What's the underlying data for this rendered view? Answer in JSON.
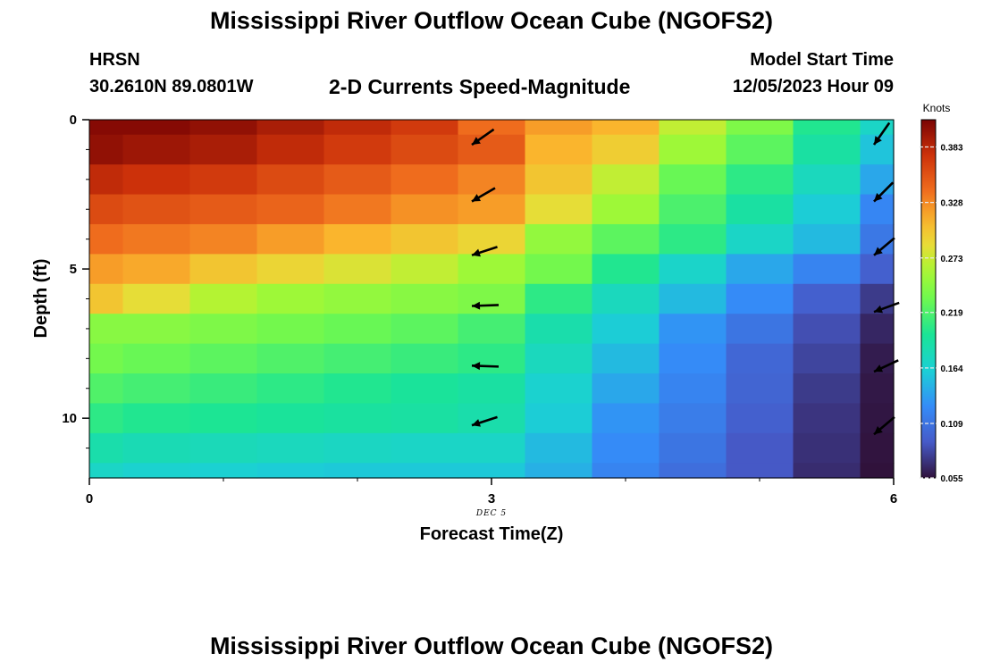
{
  "header": {
    "title": "Mississippi River Outflow Ocean Cube (NGOFS2)",
    "station": "HRSN",
    "coordinates": "30.2610N  89.0801W",
    "subtitle": "2-D Currents Speed-Magnitude",
    "model_start_label": "Model Start Time",
    "model_start_value": "12/05/2023 Hour 09"
  },
  "footer": {
    "title": "Mississippi River Outflow Ocean Cube (NGOFS2)"
  },
  "chart_data": {
    "type": "heatmap",
    "title": "2-D Currents Speed-Magnitude",
    "xlabel": "Forecast Time(Z)",
    "ylabel": "Depth (ft)",
    "x_ticks": [
      "0",
      "3",
      "6"
    ],
    "y_ticks": [
      "0",
      "5",
      "10"
    ],
    "date_annotation": "DEC 5",
    "xlim": [
      0,
      6
    ],
    "ylim": [
      0,
      12
    ],
    "x_boundaries": [
      0,
      0.25,
      0.75,
      1.25,
      1.75,
      2.25,
      2.75,
      3.25,
      3.75,
      4.25,
      4.75,
      5.25,
      5.75,
      6
    ],
    "depth_boundaries": [
      0,
      0.5,
      1.5,
      2.5,
      3.5,
      4.5,
      5.5,
      6.5,
      7.5,
      8.5,
      9.5,
      10.5,
      11.5,
      12
    ],
    "speed_knots": [
      [
        0.405,
        0.405,
        0.4,
        0.39,
        0.38,
        0.37,
        0.34,
        0.32,
        0.31,
        0.27,
        0.24,
        0.2,
        0.17
      ],
      [
        0.4,
        0.395,
        0.39,
        0.38,
        0.37,
        0.36,
        0.35,
        0.31,
        0.295,
        0.255,
        0.225,
        0.19,
        0.155
      ],
      [
        0.38,
        0.375,
        0.37,
        0.36,
        0.35,
        0.34,
        0.33,
        0.3,
        0.27,
        0.23,
        0.205,
        0.175,
        0.14
      ],
      [
        0.36,
        0.355,
        0.35,
        0.345,
        0.335,
        0.325,
        0.32,
        0.285,
        0.255,
        0.218,
        0.19,
        0.16,
        0.122
      ],
      [
        0.34,
        0.335,
        0.33,
        0.32,
        0.31,
        0.3,
        0.29,
        0.25,
        0.225,
        0.205,
        0.17,
        0.15,
        0.112
      ],
      [
        0.32,
        0.315,
        0.3,
        0.29,
        0.28,
        0.27,
        0.255,
        0.235,
        0.2,
        0.168,
        0.14,
        0.12,
        0.095
      ],
      [
        0.3,
        0.285,
        0.265,
        0.255,
        0.25,
        0.245,
        0.24,
        0.205,
        0.175,
        0.15,
        0.125,
        0.095,
        0.075
      ],
      [
        0.245,
        0.245,
        0.24,
        0.235,
        0.23,
        0.225,
        0.215,
        0.185,
        0.16,
        0.13,
        0.11,
        0.085,
        0.065
      ],
      [
        0.235,
        0.23,
        0.225,
        0.22,
        0.215,
        0.21,
        0.205,
        0.175,
        0.15,
        0.125,
        0.1,
        0.08,
        0.06
      ],
      [
        0.22,
        0.215,
        0.21,
        0.205,
        0.2,
        0.195,
        0.19,
        0.165,
        0.14,
        0.12,
        0.098,
        0.075,
        0.058
      ],
      [
        0.205,
        0.2,
        0.198,
        0.195,
        0.192,
        0.19,
        0.185,
        0.16,
        0.13,
        0.115,
        0.095,
        0.072,
        0.057
      ],
      [
        0.185,
        0.18,
        0.178,
        0.175,
        0.172,
        0.17,
        0.17,
        0.15,
        0.125,
        0.11,
        0.09,
        0.07,
        0.056
      ],
      [
        0.17,
        0.165,
        0.163,
        0.16,
        0.158,
        0.158,
        0.158,
        0.145,
        0.12,
        0.105,
        0.09,
        0.068,
        0.055
      ]
    ],
    "vectors": {
      "description": "current direction arrows (direction in degrees, clockwise from north)",
      "columns": [
        {
          "time": 3,
          "depths": [
            0.6,
            2.5,
            4.3,
            6.0,
            8.0,
            10.0
          ],
          "direction_deg": [
            235,
            240,
            252,
            268,
            272,
            252
          ]
        },
        {
          "time": 6,
          "depths": [
            0.6,
            2.5,
            4.3,
            6.2,
            8.2,
            10.3
          ],
          "direction_deg": [
            215,
            225,
            230,
            250,
            245,
            230
          ]
        }
      ]
    },
    "colorbar": {
      "label": "Knots",
      "min": 0.055,
      "max": 0.41,
      "tick_labels": [
        "0.383",
        "0.328",
        "0.273",
        "0.219",
        "0.164",
        "0.109",
        "0.055"
      ],
      "tick_values": [
        0.383,
        0.328,
        0.273,
        0.219,
        0.164,
        0.109,
        0.055
      ]
    }
  }
}
